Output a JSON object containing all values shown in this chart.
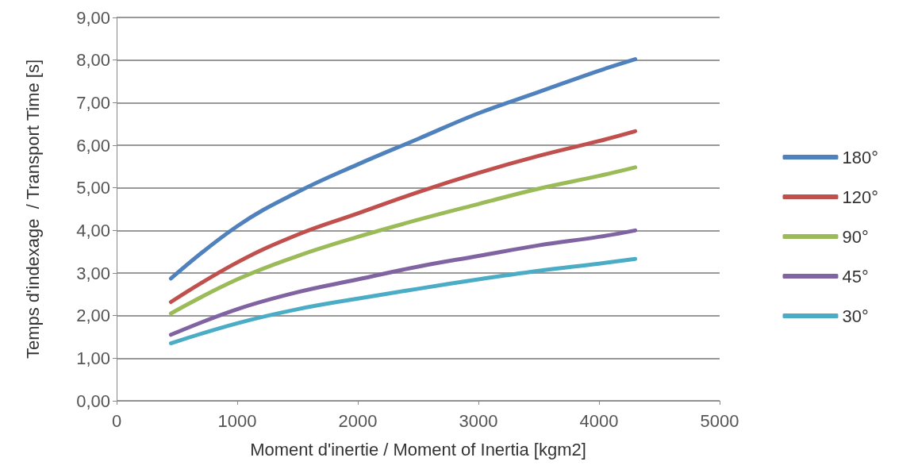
{
  "chart_data": {
    "type": "line",
    "xlabel": "Moment d'inertie / Moment of Inertia [kgm2]",
    "ylabel": "Temps d'indexage  / Transport Time [s]",
    "x": [
      450,
      1000,
      1500,
      2000,
      2500,
      3000,
      3500,
      4000,
      4300
    ],
    "series": [
      {
        "name": "180°",
        "color": "#4f81bd",
        "values": [
          2.87,
          4.1,
          4.9,
          5.55,
          6.15,
          6.75,
          7.25,
          7.75,
          8.02
        ]
      },
      {
        "name": "120°",
        "color": "#c0504d",
        "values": [
          2.32,
          3.25,
          3.9,
          4.4,
          4.9,
          5.35,
          5.75,
          6.1,
          6.33
        ]
      },
      {
        "name": "90°",
        "color": "#9bbb59",
        "values": [
          2.05,
          2.85,
          3.4,
          3.85,
          4.25,
          4.62,
          4.98,
          5.28,
          5.48
        ]
      },
      {
        "name": "45°",
        "color": "#8064a2",
        "values": [
          1.55,
          2.15,
          2.55,
          2.85,
          3.15,
          3.4,
          3.65,
          3.85,
          4.0
        ]
      },
      {
        "name": "30°",
        "color": "#4bacc6",
        "values": [
          1.35,
          1.82,
          2.15,
          2.4,
          2.63,
          2.85,
          3.05,
          3.22,
          3.33
        ]
      }
    ],
    "xlim": [
      0,
      5000
    ],
    "xticks": [
      0,
      1000,
      2000,
      3000,
      4000,
      5000
    ],
    "ylim": [
      0,
      9
    ],
    "yticks": [
      {
        "value": 0,
        "label": "0,00"
      },
      {
        "value": 1,
        "label": "1,00"
      },
      {
        "value": 2,
        "label": "2,00"
      },
      {
        "value": 3,
        "label": "3,00"
      },
      {
        "value": 4,
        "label": "4,00"
      },
      {
        "value": 5,
        "label": "5,00"
      },
      {
        "value": 6,
        "label": "6,00"
      },
      {
        "value": 7,
        "label": "7,00"
      },
      {
        "value": 8,
        "label": "8,00"
      },
      {
        "value": 9,
        "label": "9,00"
      }
    ],
    "grid": "y",
    "legend": "right",
    "marker": "none",
    "line_style": "solid"
  }
}
